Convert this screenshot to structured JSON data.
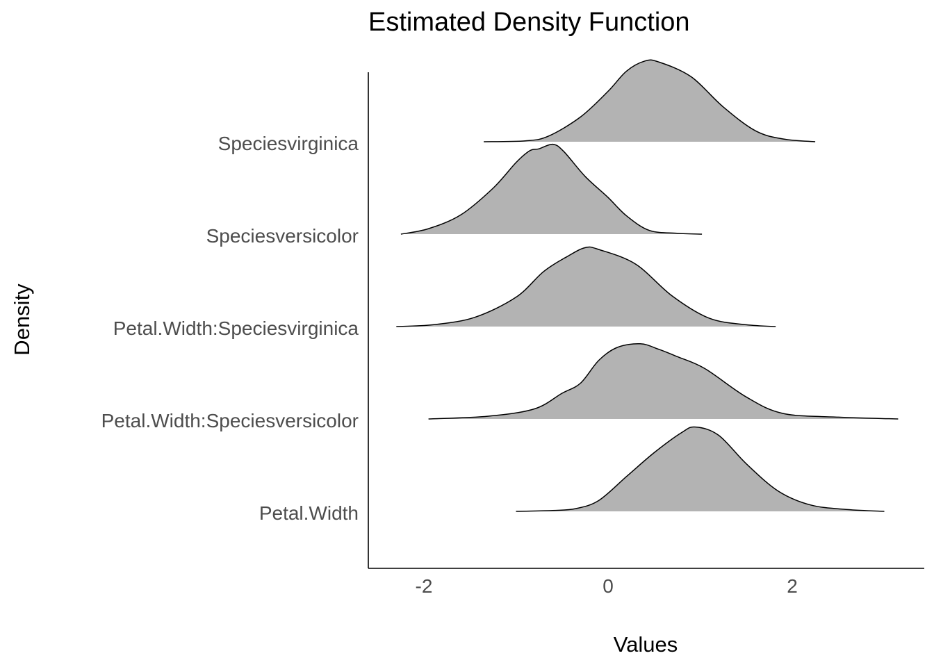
{
  "chart_data": {
    "type": "ridgeline",
    "title": "Estimated Density Function",
    "xlabel": "Values",
    "ylabel": "Density",
    "xlim": [
      -2.5,
      3.4
    ],
    "x_ticks": [
      {
        "value": -2,
        "label": "-2"
      },
      {
        "value": 0,
        "label": "0"
      },
      {
        "value": 2,
        "label": "2"
      }
    ],
    "grid": false,
    "legend": "none",
    "colors": {
      "fill": "#b3b3b3",
      "line": "#000000",
      "axis": "#000000",
      "tick_text": "#4d4d4d"
    },
    "categories": [
      "Petal.Width",
      "Petal.Width:Speciesversicolor",
      "Petal.Width:Speciesvirginica",
      "Speciesversicolor",
      "Speciesvirginica"
    ],
    "series": [
      {
        "category": "Petal.Width",
        "density": [
          [
            -1.0,
            0.0
          ],
          [
            -0.6,
            0.01
          ],
          [
            -0.35,
            0.03
          ],
          [
            -0.1,
            0.12
          ],
          [
            0.2,
            0.38
          ],
          [
            0.5,
            0.64
          ],
          [
            0.8,
            0.86
          ],
          [
            0.95,
            0.92
          ],
          [
            1.2,
            0.83
          ],
          [
            1.5,
            0.52
          ],
          [
            1.85,
            0.22
          ],
          [
            2.2,
            0.07
          ],
          [
            2.6,
            0.02
          ],
          [
            3.0,
            0.0
          ]
        ]
      },
      {
        "category": "Petal.Width:Speciesversicolor",
        "density": [
          [
            -1.95,
            0.0
          ],
          [
            -1.3,
            0.03
          ],
          [
            -0.8,
            0.11
          ],
          [
            -0.5,
            0.28
          ],
          [
            -0.3,
            0.39
          ],
          [
            -0.1,
            0.64
          ],
          [
            0.1,
            0.78
          ],
          [
            0.35,
            0.82
          ],
          [
            0.55,
            0.76
          ],
          [
            0.75,
            0.68
          ],
          [
            1.05,
            0.55
          ],
          [
            1.5,
            0.24
          ],
          [
            1.9,
            0.06
          ],
          [
            2.5,
            0.02
          ],
          [
            3.15,
            0.0
          ]
        ]
      },
      {
        "category": "Petal.Width:Speciesvirginica",
        "density": [
          [
            -2.3,
            0.0
          ],
          [
            -1.9,
            0.02
          ],
          [
            -1.45,
            0.1
          ],
          [
            -1.0,
            0.32
          ],
          [
            -0.7,
            0.6
          ],
          [
            -0.45,
            0.76
          ],
          [
            -0.25,
            0.86
          ],
          [
            -0.1,
            0.84
          ],
          [
            0.3,
            0.68
          ],
          [
            0.7,
            0.33
          ],
          [
            1.1,
            0.09
          ],
          [
            1.5,
            0.02
          ],
          [
            1.82,
            0.0
          ]
        ]
      },
      {
        "category": "Speciesversicolor",
        "density": [
          [
            -2.25,
            0.0
          ],
          [
            -1.95,
            0.06
          ],
          [
            -1.6,
            0.21
          ],
          [
            -1.25,
            0.5
          ],
          [
            -1.0,
            0.78
          ],
          [
            -0.85,
            0.91
          ],
          [
            -0.75,
            0.93
          ],
          [
            -0.6,
            0.98
          ],
          [
            -0.48,
            0.9
          ],
          [
            -0.25,
            0.63
          ],
          [
            0.0,
            0.4
          ],
          [
            0.2,
            0.2
          ],
          [
            0.45,
            0.04
          ],
          [
            0.75,
            0.01
          ],
          [
            1.02,
            0.0
          ]
        ]
      },
      {
        "category": "Speciesvirginica",
        "density": [
          [
            -1.35,
            0.0
          ],
          [
            -0.9,
            0.01
          ],
          [
            -0.65,
            0.06
          ],
          [
            -0.3,
            0.27
          ],
          [
            0.0,
            0.55
          ],
          [
            0.2,
            0.77
          ],
          [
            0.4,
            0.88
          ],
          [
            0.55,
            0.87
          ],
          [
            0.9,
            0.71
          ],
          [
            1.25,
            0.38
          ],
          [
            1.6,
            0.12
          ],
          [
            1.9,
            0.03
          ],
          [
            2.25,
            0.0
          ]
        ]
      }
    ]
  }
}
